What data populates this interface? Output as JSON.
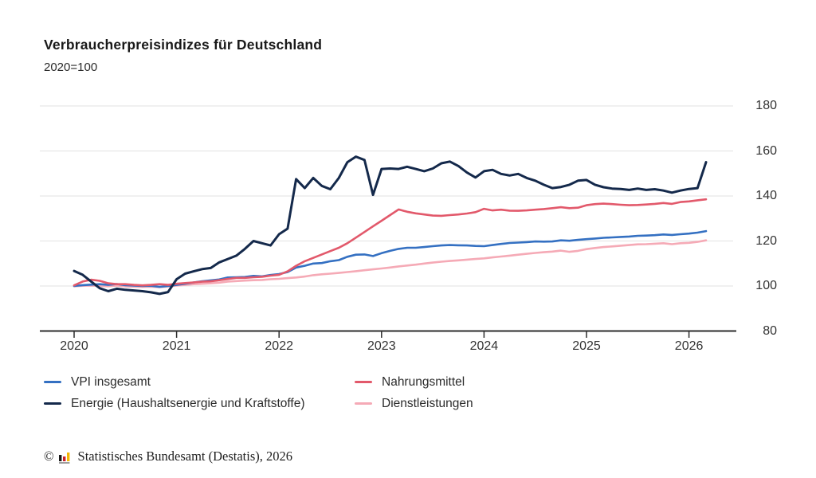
{
  "header": {
    "title": "Verbraucherpreisindizes für Deutschland",
    "subtitle": "2020=100"
  },
  "chart_data": {
    "type": "line",
    "title": "Verbraucherpreisindizes für Deutschland",
    "subtitle": "2020=100",
    "x_unit": "month",
    "x_range": "Jan 2020 – Mar 2026",
    "x_tick_labels": [
      "2020",
      "2021",
      "2022",
      "2023",
      "2024",
      "2025",
      "2026"
    ],
    "y_ticks": [
      80,
      100,
      120,
      140,
      160,
      180
    ],
    "ylim": [
      80,
      180
    ],
    "grid": "horizontal",
    "legend_position": "bottom",
    "colors": {
      "grid": "#e2e2e2",
      "axis": "#2e2e2e",
      "text": "#333333"
    },
    "series": [
      {
        "name": "VPI insgesamt",
        "color": "#3470c2",
        "values": [
          100.0,
          100.4,
          100.6,
          100.8,
          100.5,
          100.9,
          100.4,
          100.2,
          100.0,
          100.1,
          99.6,
          100.0,
          100.5,
          101.0,
          101.6,
          102.1,
          102.5,
          102.9,
          103.8,
          103.9,
          104.0,
          104.5,
          104.3,
          104.9,
          105.3,
          106.2,
          108.2,
          109.0,
          110.0,
          110.2,
          111.0,
          111.5,
          113.0,
          113.9,
          114.0,
          113.3,
          114.6,
          115.6,
          116.5,
          117.0,
          117.0,
          117.3,
          117.7,
          118.0,
          118.2,
          118.1,
          118.0,
          117.8,
          117.7,
          118.2,
          118.7,
          119.1,
          119.3,
          119.5,
          119.8,
          119.7,
          119.8,
          120.3,
          120.1,
          120.5,
          120.8,
          121.1,
          121.4,
          121.6,
          121.8,
          122.0,
          122.3,
          122.4,
          122.6,
          122.9,
          122.7,
          123.0,
          123.3,
          123.7,
          124.4
        ]
      },
      {
        "name": "Nahrungsmittel",
        "color": "#e2596b",
        "values": [
          100.3,
          102.0,
          102.8,
          102.3,
          101.2,
          100.8,
          100.8,
          100.5,
          100.3,
          100.5,
          100.8,
          100.5,
          101.0,
          101.3,
          101.6,
          101.9,
          102.1,
          102.6,
          103.1,
          103.6,
          103.6,
          103.9,
          104.1,
          104.6,
          105.0,
          106.5,
          109.0,
          111.0,
          112.5,
          114.0,
          115.5,
          117.0,
          119.0,
          121.5,
          124.0,
          126.5,
          129.0,
          131.5,
          134.0,
          133.0,
          132.3,
          131.8,
          131.3,
          131.2,
          131.5,
          131.8,
          132.2,
          132.8,
          134.3,
          133.6,
          133.9,
          133.5,
          133.4,
          133.6,
          133.9,
          134.2,
          134.6,
          135.0,
          134.6,
          134.8,
          135.9,
          136.4,
          136.6,
          136.4,
          136.1,
          135.9,
          136.0,
          136.2,
          136.5,
          136.9,
          136.5,
          137.3,
          137.6,
          138.1,
          138.5
        ]
      },
      {
        "name": "Energie (Haushaltsenergie und Kraftstoffe)",
        "color": "#14294b",
        "values": [
          106.7,
          105.0,
          102.0,
          99.0,
          97.7,
          98.8,
          98.3,
          98.0,
          97.7,
          97.2,
          96.5,
          97.3,
          103.0,
          105.5,
          106.5,
          107.5,
          108.0,
          110.5,
          112.0,
          113.5,
          116.5,
          120.0,
          119.0,
          118.0,
          123.0,
          125.5,
          147.5,
          143.5,
          148.0,
          144.5,
          143.0,
          148.0,
          155.0,
          157.5,
          156.0,
          140.5,
          152.0,
          152.2,
          152.0,
          153.0,
          152.0,
          151.0,
          152.2,
          154.5,
          155.3,
          153.3,
          150.4,
          148.2,
          151.0,
          151.6,
          149.8,
          149.1,
          149.8,
          148.0,
          146.8,
          145.0,
          143.5,
          144.0,
          145.0,
          146.8,
          147.1,
          145.0,
          143.9,
          143.3,
          143.1,
          142.7,
          143.3,
          142.7,
          143.0,
          142.4,
          141.5,
          142.4,
          143.1,
          143.5,
          155.0
        ]
      },
      {
        "name": "Dienstleistungen",
        "color": "#f5aab6",
        "values": [
          99.9,
          100.1,
          100.2,
          100.0,
          99.9,
          100.2,
          99.8,
          99.7,
          99.6,
          99.7,
          99.5,
          99.8,
          100.2,
          100.5,
          100.8,
          101.0,
          101.2,
          101.5,
          102.0,
          102.2,
          102.4,
          102.6,
          102.7,
          103.0,
          103.2,
          103.5,
          103.8,
          104.2,
          104.8,
          105.2,
          105.5,
          105.8,
          106.2,
          106.6,
          107.0,
          107.4,
          107.8,
          108.2,
          108.7,
          109.1,
          109.5,
          110.0,
          110.4,
          110.8,
          111.1,
          111.4,
          111.7,
          112.0,
          112.3,
          112.7,
          113.1,
          113.5,
          113.9,
          114.3,
          114.7,
          115.0,
          115.3,
          115.7,
          115.2,
          115.6,
          116.4,
          116.9,
          117.3,
          117.6,
          117.9,
          118.2,
          118.5,
          118.6,
          118.8,
          119.0,
          118.6,
          119.0,
          119.2,
          119.6,
          120.3
        ]
      }
    ]
  },
  "footer": {
    "copyright": "©",
    "source": "Statistisches Bundesamt (Destatis), 2026",
    "logo_bar_colors": [
      "#1a1a1a",
      "#c8232d",
      "#f2b705",
      "#9e9e9e"
    ]
  }
}
